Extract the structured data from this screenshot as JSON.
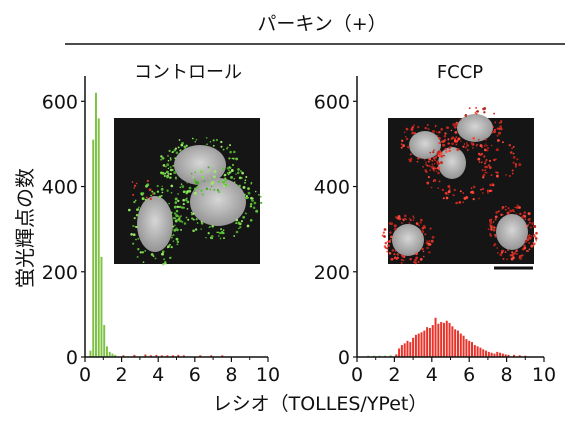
{
  "figure": {
    "header": "パーキン（+）",
    "ylabel": "蛍光輝点の数",
    "xlabel": "レシオ（TOLLES/YPet）"
  },
  "chart_data": [
    {
      "type": "bar",
      "title": "コントロール",
      "xlim": [
        0,
        10
      ],
      "ylim": [
        0,
        650
      ],
      "xticks": [
        0,
        2,
        4,
        6,
        8,
        10
      ],
      "yticks": [
        0,
        200,
        400,
        600
      ],
      "bin_width": 0.15,
      "bins": [
        {
          "x": 0.3,
          "y": 15,
          "color": "#7dc243"
        },
        {
          "x": 0.45,
          "y": 510,
          "color": "#7dc243"
        },
        {
          "x": 0.6,
          "y": 620,
          "color": "#7dc243"
        },
        {
          "x": 0.75,
          "y": 560,
          "color": "#7dc243"
        },
        {
          "x": 0.9,
          "y": 235,
          "color": "#7dc243"
        },
        {
          "x": 1.05,
          "y": 75,
          "color": "#7dc243"
        },
        {
          "x": 1.2,
          "y": 25,
          "color": "#7dc243"
        },
        {
          "x": 1.35,
          "y": 12,
          "color": "#7dc243"
        },
        {
          "x": 1.5,
          "y": 8,
          "color": "#7dc243"
        },
        {
          "x": 1.65,
          "y": 5,
          "color": "#7dc243"
        },
        {
          "x": 2.1,
          "y": 4,
          "color": "#e8332a"
        },
        {
          "x": 2.7,
          "y": 5,
          "color": "#e8332a"
        },
        {
          "x": 3.3,
          "y": 6,
          "color": "#e8332a"
        },
        {
          "x": 3.6,
          "y": 4,
          "color": "#e8332a"
        },
        {
          "x": 3.9,
          "y": 5,
          "color": "#e8332a"
        },
        {
          "x": 4.2,
          "y": 4,
          "color": "#e8332a"
        },
        {
          "x": 4.5,
          "y": 4,
          "color": "#e8332a"
        },
        {
          "x": 4.8,
          "y": 4,
          "color": "#e8332a"
        },
        {
          "x": 5.1,
          "y": 5,
          "color": "#e8332a"
        },
        {
          "x": 5.4,
          "y": 4,
          "color": "#e8332a"
        },
        {
          "x": 6.3,
          "y": 4,
          "color": "#e8332a"
        },
        {
          "x": 6.9,
          "y": 4,
          "color": "#e8332a"
        },
        {
          "x": 7.5,
          "y": 4,
          "color": "#e8332a"
        }
      ]
    },
    {
      "type": "bar",
      "title": "FCCP",
      "xlim": [
        0,
        10
      ],
      "ylim": [
        0,
        650
      ],
      "xticks": [
        0,
        2,
        4,
        6,
        8,
        10
      ],
      "yticks": [
        0,
        200,
        400,
        600
      ],
      "bin_width": 0.15,
      "bins": [
        {
          "x": 0.6,
          "y": 3,
          "color": "#7dc243"
        },
        {
          "x": 0.9,
          "y": 3,
          "color": "#7dc243"
        },
        {
          "x": 1.2,
          "y": 3,
          "color": "#7dc243"
        },
        {
          "x": 1.5,
          "y": 3,
          "color": "#7dc243"
        },
        {
          "x": 1.8,
          "y": 4,
          "color": "#7dc243"
        },
        {
          "x": 2.1,
          "y": 6,
          "color": "#e8332a"
        },
        {
          "x": 2.25,
          "y": 20,
          "color": "#e8332a"
        },
        {
          "x": 2.4,
          "y": 28,
          "color": "#e8332a"
        },
        {
          "x": 2.55,
          "y": 32,
          "color": "#e8332a"
        },
        {
          "x": 2.7,
          "y": 38,
          "color": "#e8332a"
        },
        {
          "x": 2.85,
          "y": 35,
          "color": "#e8332a"
        },
        {
          "x": 3.0,
          "y": 45,
          "color": "#e8332a"
        },
        {
          "x": 3.15,
          "y": 52,
          "color": "#e8332a"
        },
        {
          "x": 3.3,
          "y": 55,
          "color": "#e8332a"
        },
        {
          "x": 3.45,
          "y": 58,
          "color": "#e8332a"
        },
        {
          "x": 3.6,
          "y": 62,
          "color": "#e8332a"
        },
        {
          "x": 3.75,
          "y": 70,
          "color": "#e8332a"
        },
        {
          "x": 3.9,
          "y": 68,
          "color": "#e8332a"
        },
        {
          "x": 4.05,
          "y": 75,
          "color": "#e8332a"
        },
        {
          "x": 4.2,
          "y": 92,
          "color": "#e8332a"
        },
        {
          "x": 4.35,
          "y": 78,
          "color": "#e8332a"
        },
        {
          "x": 4.5,
          "y": 82,
          "color": "#e8332a"
        },
        {
          "x": 4.65,
          "y": 80,
          "color": "#e8332a"
        },
        {
          "x": 4.8,
          "y": 85,
          "color": "#e8332a"
        },
        {
          "x": 4.95,
          "y": 80,
          "color": "#e8332a"
        },
        {
          "x": 5.1,
          "y": 72,
          "color": "#e8332a"
        },
        {
          "x": 5.25,
          "y": 65,
          "color": "#e8332a"
        },
        {
          "x": 5.4,
          "y": 62,
          "color": "#e8332a"
        },
        {
          "x": 5.55,
          "y": 55,
          "color": "#e8332a"
        },
        {
          "x": 5.7,
          "y": 50,
          "color": "#e8332a"
        },
        {
          "x": 5.85,
          "y": 42,
          "color": "#e8332a"
        },
        {
          "x": 6.0,
          "y": 38,
          "color": "#e8332a"
        },
        {
          "x": 6.15,
          "y": 35,
          "color": "#e8332a"
        },
        {
          "x": 6.3,
          "y": 28,
          "color": "#e8332a"
        },
        {
          "x": 6.45,
          "y": 25,
          "color": "#e8332a"
        },
        {
          "x": 6.6,
          "y": 22,
          "color": "#e8332a"
        },
        {
          "x": 6.75,
          "y": 18,
          "color": "#e8332a"
        },
        {
          "x": 6.9,
          "y": 15,
          "color": "#e8332a"
        },
        {
          "x": 7.05,
          "y": 12,
          "color": "#e8332a"
        },
        {
          "x": 7.2,
          "y": 10,
          "color": "#e8332a"
        },
        {
          "x": 7.35,
          "y": 8,
          "color": "#e8332a"
        },
        {
          "x": 7.5,
          "y": 12,
          "color": "#e8332a"
        },
        {
          "x": 7.65,
          "y": 10,
          "color": "#e8332a"
        },
        {
          "x": 7.8,
          "y": 8,
          "color": "#e8332a"
        },
        {
          "x": 7.95,
          "y": 6,
          "color": "#e8332a"
        },
        {
          "x": 8.1,
          "y": 5,
          "color": "#e8332a"
        },
        {
          "x": 8.4,
          "y": 5,
          "color": "#e8332a"
        },
        {
          "x": 8.7,
          "y": 4,
          "color": "#e8332a"
        },
        {
          "x": 9.0,
          "y": 3,
          "color": "#e8332a"
        }
      ]
    }
  ]
}
